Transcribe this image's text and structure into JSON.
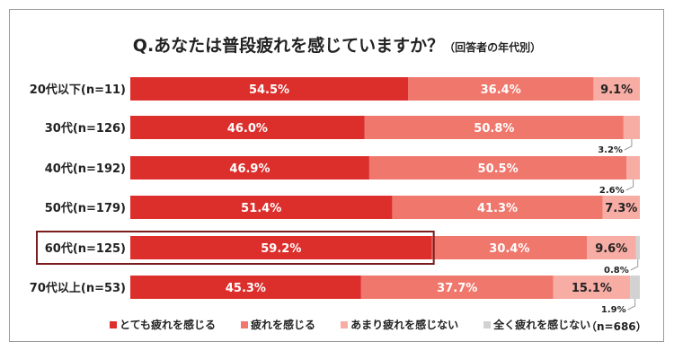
{
  "title": "Q.あなたは普段疲れを感じていますか？",
  "subtitle": "（回答者の年代別）",
  "total_n": "（n=686）",
  "colors": {
    "s1": "#dc2f2c",
    "s2": "#f0776c",
    "s3": "#f7aca4",
    "s4": "#d2d2d2",
    "highlight": "#7a1d1d"
  },
  "chart_data": {
    "type": "bar",
    "orientation": "horizontal",
    "stacked": true,
    "categories": [
      "20代以下(n=11)",
      "30代(n=126)",
      "40代(n=192)",
      "50代(n=179)",
      "60代(n=125)",
      "70代以上(n=53)"
    ],
    "series": [
      {
        "name": "とても疲れを感じる",
        "values": [
          54.5,
          46.0,
          46.9,
          51.4,
          59.2,
          45.3
        ]
      },
      {
        "name": "疲れを感じる",
        "values": [
          36.4,
          50.8,
          50.5,
          41.3,
          30.4,
          37.7
        ]
      },
      {
        "name": "あまり疲れを感じない",
        "values": [
          9.1,
          3.2,
          2.6,
          7.3,
          9.6,
          15.1
        ]
      },
      {
        "name": "全く疲れを感じない",
        "values": [
          0,
          0,
          0,
          0,
          0.8,
          1.9
        ]
      }
    ],
    "highlighted_category": "60代(n=125)",
    "xlim": [
      0,
      100
    ],
    "grid": false,
    "legend_position": "bottom"
  }
}
